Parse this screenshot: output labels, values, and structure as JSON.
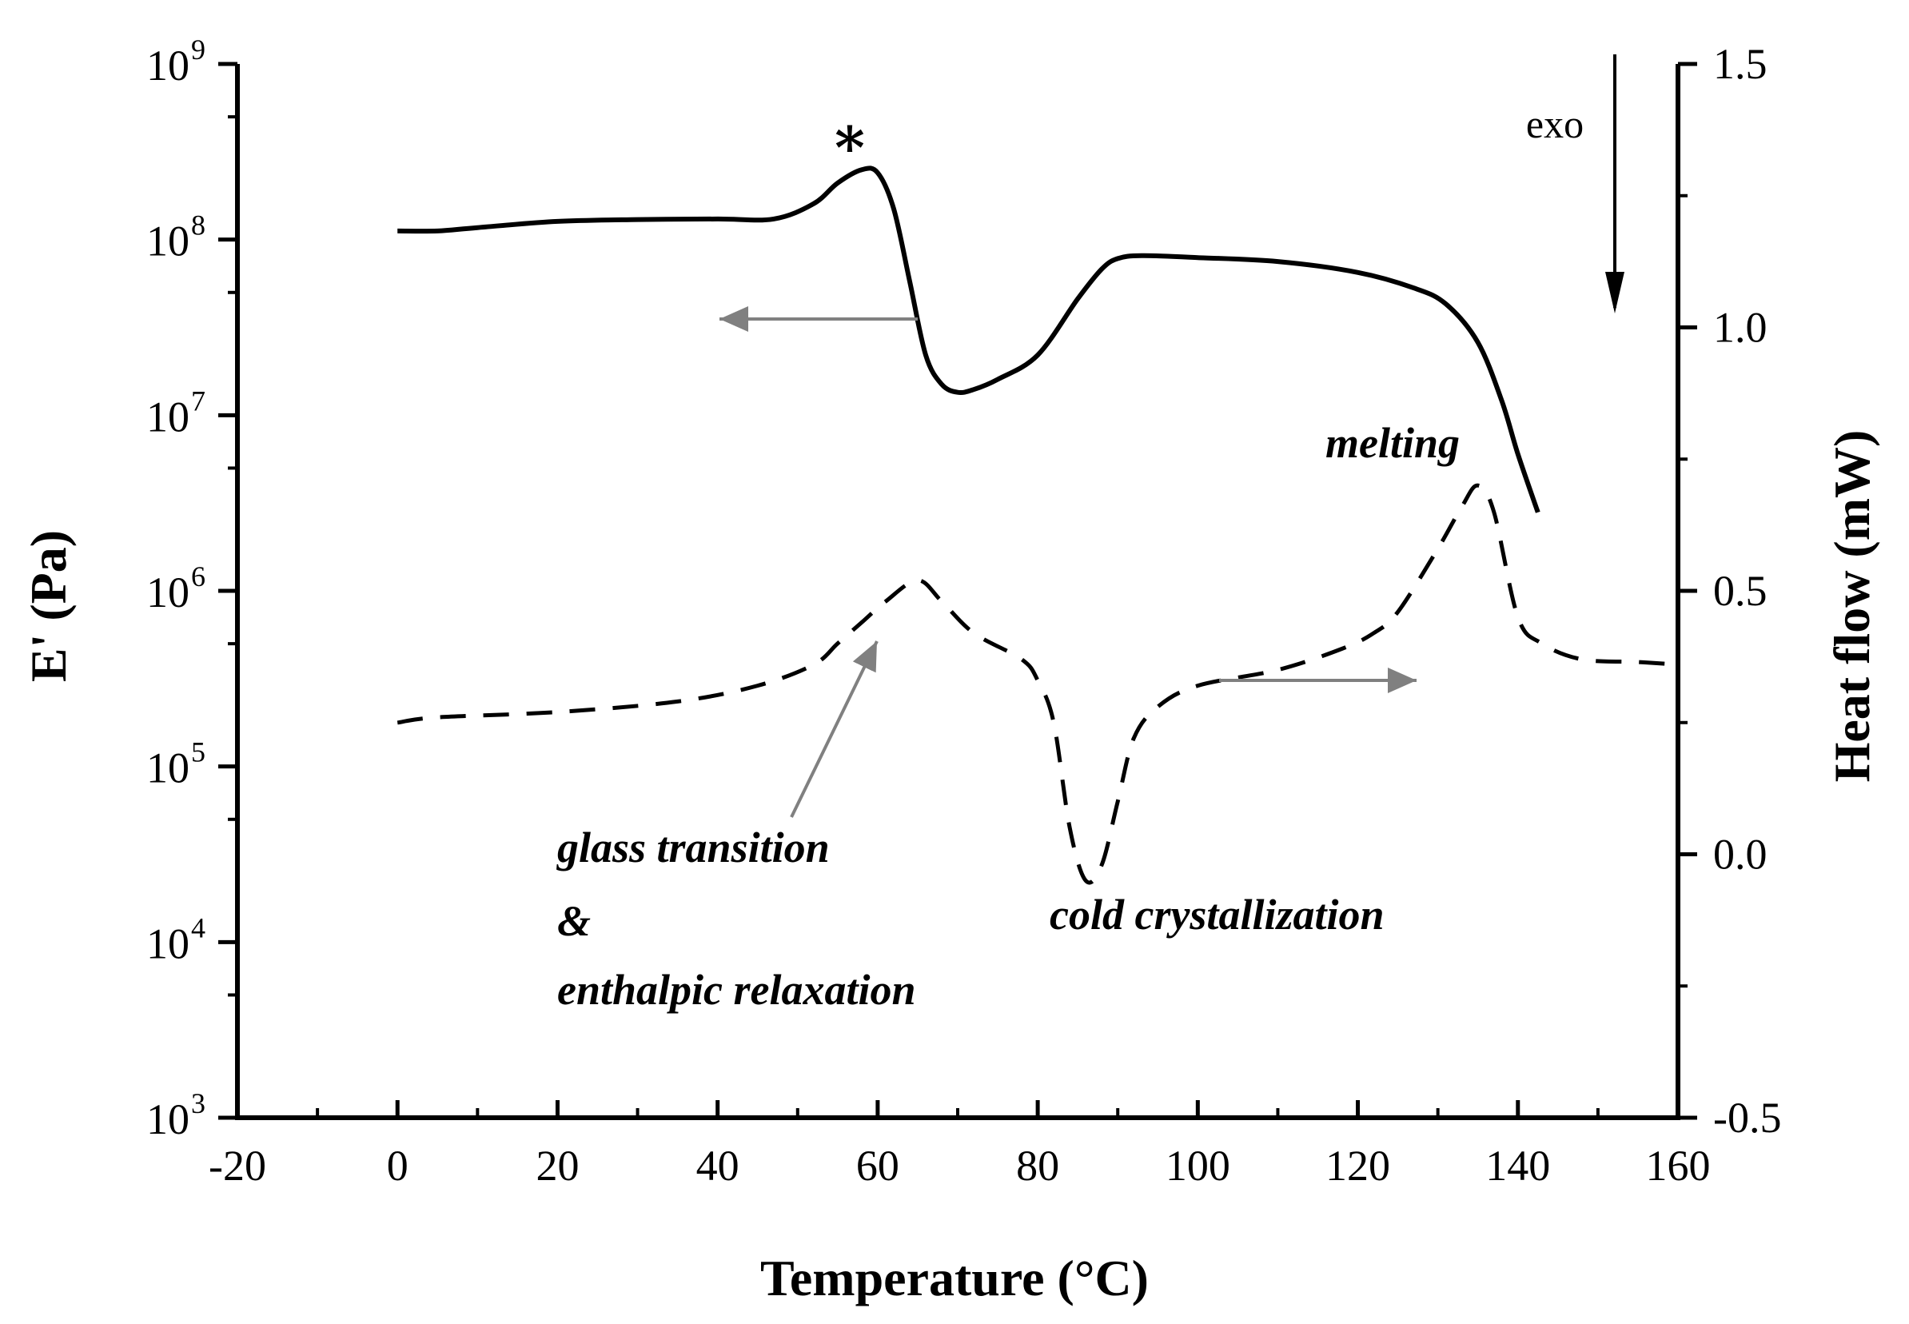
{
  "chart_data": {
    "type": "line",
    "title": "",
    "xlabel": "Temperature (°C)",
    "ylabel_left": "E' (Pa)",
    "ylabel_right": "Heat flow (mW)",
    "xlim": [
      -20,
      160
    ],
    "x_ticks": [
      -20,
      0,
      20,
      40,
      60,
      80,
      100,
      120,
      140,
      160
    ],
    "x_tick_labels": [
      "-20",
      "0",
      "20",
      "40",
      "60",
      "80",
      "100",
      "120",
      "140",
      "160"
    ],
    "ylim_left_log10": [
      3,
      9
    ],
    "y_left_ticks_exp": [
      3,
      4,
      5,
      6,
      7,
      8,
      9
    ],
    "y_left_tick_base": "10",
    "y_left_tick_exps": [
      "3",
      "4",
      "5",
      "6",
      "7",
      "8",
      "9"
    ],
    "ylim_right": [
      -0.5,
      1.5
    ],
    "y_right_ticks": [
      -0.5,
      0.0,
      0.5,
      1.0,
      1.5
    ],
    "y_right_tick_labels": [
      "-0.5",
      "0.0",
      "0.5",
      "1.0",
      "1.5"
    ],
    "series": [
      {
        "name": "E'",
        "axis": "left",
        "style": "solid",
        "x": [
          0,
          5,
          10,
          20,
          30,
          40,
          47,
          52,
          55,
          58,
          60,
          62,
          64,
          66,
          68,
          70,
          72,
          75,
          80,
          85,
          88,
          90,
          93,
          100,
          110,
          120,
          127,
          131,
          135,
          138,
          140,
          142.5
        ],
        "y": [
          112000000.0,
          112000000.0,
          117000000.0,
          127000000.0,
          130000000.0,
          131000000.0,
          131000000.0,
          160000000.0,
          210000000.0,
          250000000.0,
          240000000.0,
          150000000.0,
          58000000.0,
          22000000.0,
          15000000.0,
          13500000.0,
          14000000.0,
          16000000.0,
          22000000.0,
          46000000.0,
          68000000.0,
          78000000.0,
          81000000.0,
          79000000.0,
          75000000.0,
          65000000.0,
          53000000.0,
          43000000.0,
          26000000.0,
          12000000.0,
          6000000.0,
          2800000.0
        ]
      },
      {
        "name": "Heat flow",
        "axis": "right",
        "style": "dashed",
        "x": [
          0,
          5,
          20,
          35,
          45,
          52,
          55,
          58,
          61,
          65,
          68,
          72,
          78,
          80,
          82,
          84,
          86,
          88,
          90,
          92,
          95,
          100,
          110,
          118,
          122,
          125,
          130,
          133,
          135,
          137,
          140,
          143,
          148,
          155,
          160
        ],
        "y": [
          0.25,
          0.26,
          0.27,
          0.29,
          0.32,
          0.36,
          0.4,
          0.44,
          0.48,
          0.52,
          0.48,
          0.42,
          0.37,
          0.33,
          0.25,
          0.05,
          -0.05,
          -0.02,
          0.1,
          0.22,
          0.28,
          0.32,
          0.35,
          0.39,
          0.42,
          0.46,
          0.58,
          0.66,
          0.7,
          0.65,
          0.45,
          0.4,
          0.37,
          0.365,
          0.36
        ]
      }
    ],
    "annotations": {
      "star": "*",
      "exo": "exo",
      "melting": "melting",
      "glass_transition": "glass transition",
      "ampersand": "&",
      "enthalpic_relaxation": "enthalpic relaxation",
      "cold_crystallization": "cold crystallization"
    }
  }
}
